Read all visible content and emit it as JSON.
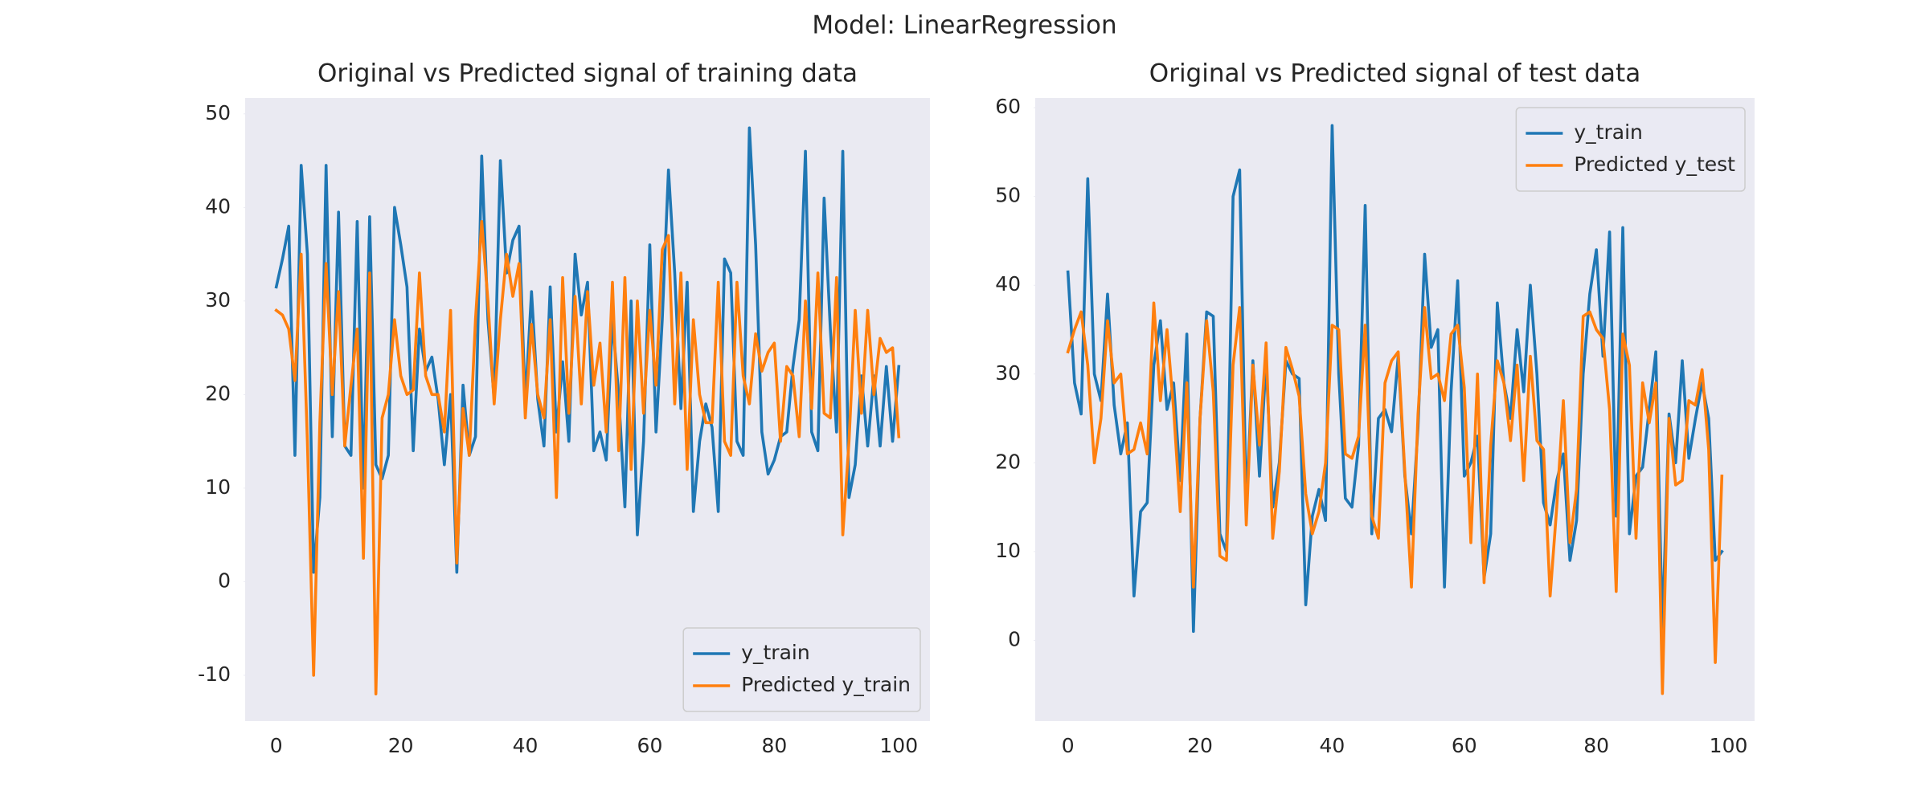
{
  "title": "Model: LinearRegression",
  "chart_data": [
    {
      "type": "line",
      "title": "Original vs Predicted signal of training data",
      "x": [
        0,
        1,
        2,
        3,
        4,
        5,
        6,
        7,
        8,
        9,
        10,
        11,
        12,
        13,
        14,
        15,
        16,
        17,
        18,
        19,
        20,
        21,
        22,
        23,
        24,
        25,
        26,
        27,
        28,
        29,
        30,
        31,
        32,
        33,
        34,
        35,
        36,
        37,
        38,
        39,
        40,
        41,
        42,
        43,
        44,
        45,
        46,
        47,
        48,
        49,
        50,
        51,
        52,
        53,
        54,
        55,
        56,
        57,
        58,
        59,
        60,
        61,
        62,
        63,
        64,
        65,
        66,
        67,
        68,
        69,
        70,
        71,
        72,
        73,
        74,
        75,
        76,
        77,
        78,
        79,
        80,
        81,
        82,
        83,
        84,
        85,
        86,
        87,
        88,
        89,
        90,
        91,
        92,
        93,
        94,
        95,
        96,
        97,
        98,
        99,
        100
      ],
      "series": [
        {
          "name": "y_train",
          "color": "#1f77b4",
          "values": [
            31.5,
            34.5,
            38,
            13.5,
            44.5,
            35,
            1,
            9,
            44.5,
            15.5,
            39.5,
            14.5,
            13.5,
            38.5,
            10,
            39,
            12.5,
            11,
            13.5,
            40,
            36,
            31.5,
            14,
            27,
            22.5,
            24,
            19.5,
            12.5,
            20,
            1,
            21,
            13.5,
            15.5,
            45.5,
            28,
            19.5,
            45,
            33,
            36.5,
            38,
            19,
            31,
            19.5,
            14.5,
            31.5,
            16,
            23.5,
            15,
            35,
            28.5,
            32,
            14,
            16,
            13,
            28,
            20,
            8,
            30,
            5,
            15,
            36,
            16,
            28,
            44,
            33,
            18.5,
            32,
            7.5,
            15,
            19,
            16.5,
            7.5,
            34.5,
            33,
            15,
            13.5,
            48.5,
            36,
            16,
            11.5,
            13,
            15.5,
            16,
            23,
            28,
            46,
            16,
            14,
            41,
            27,
            16,
            46,
            9,
            12.5,
            22,
            14.5,
            22,
            14.5,
            23,
            15,
            23
          ]
        },
        {
          "name": "Predicted y_train",
          "color": "#ff7f0e",
          "values": [
            29,
            28.5,
            27,
            21.5,
            35,
            15,
            -10,
            17,
            34,
            20,
            31,
            14.5,
            21,
            27,
            2.5,
            33,
            -12,
            17.5,
            20,
            28,
            22,
            20,
            20.5,
            33,
            22,
            20,
            20,
            16,
            29,
            2,
            18.5,
            13.5,
            28,
            38.5,
            30,
            19,
            28,
            35,
            30.5,
            34,
            17.5,
            27.5,
            20,
            17.5,
            28,
            9,
            32.5,
            18,
            30.5,
            19,
            31,
            21,
            25.5,
            16,
            32,
            14,
            32.5,
            12,
            30,
            18,
            29,
            21,
            35.5,
            37,
            19,
            33,
            12,
            28,
            20,
            17,
            17,
            32,
            15,
            13.5,
            32,
            22,
            19,
            26.5,
            22.5,
            24.5,
            25.5,
            15,
            23,
            22,
            15.5,
            30,
            18.5,
            33,
            18,
            17.5,
            32.5,
            5,
            15,
            29,
            18,
            29,
            20,
            26,
            24.5,
            25,
            15.5
          ]
        }
      ],
      "xlim": [
        -5,
        105
      ],
      "xticks": [
        0,
        20,
        40,
        60,
        80,
        100
      ],
      "ylim": [
        -14.9,
        51.7
      ],
      "yticks": [
        -10,
        0,
        10,
        20,
        30,
        40,
        50
      ],
      "grid": false,
      "legend": "lower right"
    },
    {
      "type": "line",
      "title": "Original vs Predicted signal of test data",
      "x": [
        0,
        1,
        2,
        3,
        4,
        5,
        6,
        7,
        8,
        9,
        10,
        11,
        12,
        13,
        14,
        15,
        16,
        17,
        18,
        19,
        20,
        21,
        22,
        23,
        24,
        25,
        26,
        27,
        28,
        29,
        30,
        31,
        32,
        33,
        34,
        35,
        36,
        37,
        38,
        39,
        40,
        41,
        42,
        43,
        44,
        45,
        46,
        47,
        48,
        49,
        50,
        51,
        52,
        53,
        54,
        55,
        56,
        57,
        58,
        59,
        60,
        61,
        62,
        63,
        64,
        65,
        66,
        67,
        68,
        69,
        70,
        71,
        72,
        73,
        74,
        75,
        76,
        77,
        78,
        79,
        80,
        81,
        82,
        83,
        84,
        85,
        86,
        87,
        88,
        89,
        90,
        91,
        92,
        93,
        94,
        95,
        96,
        97,
        98,
        99
      ],
      "series": [
        {
          "name": "y_train",
          "color": "#1f77b4",
          "values": [
            41.5,
            29,
            25.5,
            52,
            30,
            27,
            39,
            26.5,
            21,
            24.5,
            5,
            14.5,
            15.5,
            31,
            36,
            26,
            29,
            18,
            34.5,
            1,
            25,
            37,
            36.5,
            12,
            10,
            50,
            53,
            15,
            31.5,
            18.5,
            31.5,
            15,
            20,
            31.5,
            30,
            29.5,
            4,
            14,
            17,
            13.5,
            58,
            30,
            16,
            15,
            22,
            49,
            12,
            25,
            26,
            23.5,
            32,
            18.5,
            12,
            24,
            43.5,
            33,
            35,
            6,
            28,
            40.5,
            18.5,
            20,
            23,
            7,
            12,
            38,
            29,
            25,
            35,
            28,
            40,
            30,
            15.5,
            13,
            18,
            21,
            9,
            13.5,
            30,
            39,
            44,
            32,
            46,
            14,
            46.5,
            12,
            18.5,
            19.5,
            26,
            32.5,
            1,
            25.5,
            20,
            31.5,
            20.5,
            25,
            29,
            25,
            9,
            10
          ]
        },
        {
          "name": "Predicted y_test",
          "color": "#ff7f0e",
          "values": [
            32.5,
            35,
            37,
            31,
            20,
            25,
            36,
            29,
            30,
            21,
            21.5,
            24.5,
            21,
            38,
            27,
            35,
            26,
            14.5,
            29,
            6,
            25,
            36,
            28,
            9.5,
            9,
            31,
            37.5,
            13,
            31,
            22,
            33.5,
            11.5,
            19,
            33,
            30.5,
            27.5,
            16.5,
            12,
            14.5,
            20,
            35.5,
            35,
            21,
            20.5,
            23,
            35.5,
            14,
            11.5,
            29,
            31.5,
            32.5,
            19,
            6,
            25.5,
            37.5,
            29.5,
            30,
            27,
            34.5,
            35.5,
            28.5,
            11,
            30,
            6.5,
            22,
            31.5,
            29,
            22.5,
            31,
            18,
            32,
            22.5,
            21.5,
            5,
            15,
            27,
            11,
            17,
            36.5,
            37,
            35,
            34,
            26,
            5.5,
            34.5,
            31,
            11.5,
            29,
            24.5,
            29,
            -6,
            25,
            17.5,
            18,
            27,
            26.5,
            30.5,
            21.5,
            -2.5,
            18.5
          ]
        }
      ],
      "xlim": [
        -4.95,
        103.95
      ],
      "xticks": [
        0,
        20,
        40,
        60,
        80,
        100
      ],
      "ylim": [
        -9.1,
        61.1
      ],
      "yticks": [
        0,
        10,
        20,
        30,
        40,
        50,
        60
      ],
      "grid": false,
      "legend": "upper right"
    }
  ]
}
